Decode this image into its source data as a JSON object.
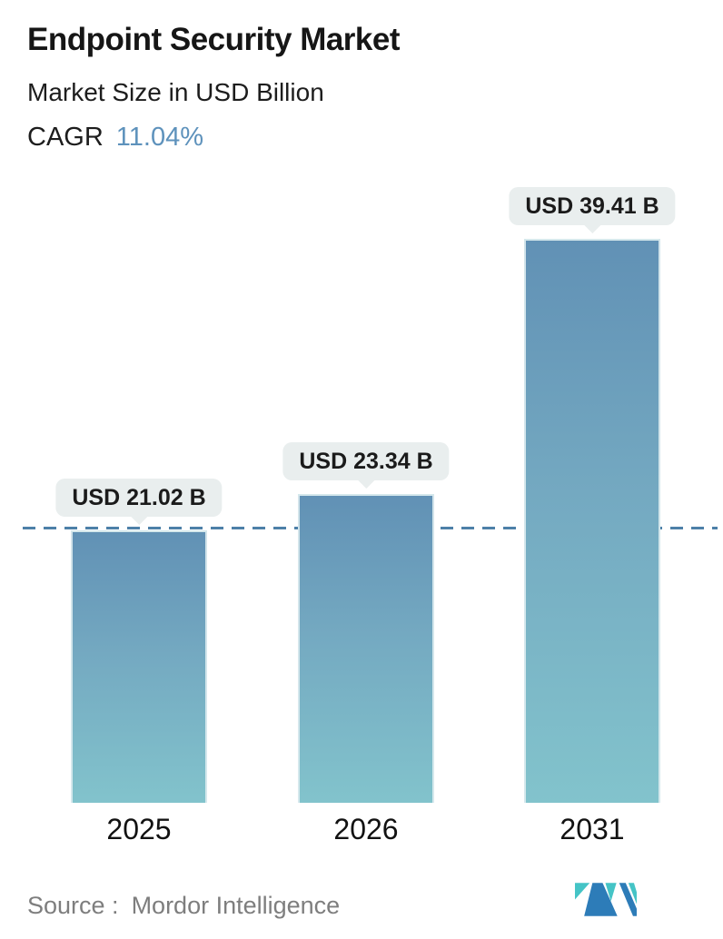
{
  "header": {
    "title": "Endpoint Security Market",
    "subtitle": "Market Size in USD Billion",
    "cagr_label": "CAGR",
    "cagr_value": "11.04%"
  },
  "chart_data": {
    "type": "bar",
    "title": "Endpoint Security Market",
    "subtitle": "Market Size in USD Billion",
    "unit": "USD Billion",
    "cagr": "11.04%",
    "categories": [
      "2025",
      "2026",
      "2031"
    ],
    "values": [
      21.02,
      23.34,
      39.41
    ],
    "value_labels": [
      "USD 21.02 B",
      "USD 23.34 B",
      "USD 39.41 B"
    ],
    "reference_line": {
      "style": "dashed",
      "at_value": 21.02,
      "color": "#4d80a8"
    },
    "grid": false,
    "legend": "none",
    "y_axis_visible": false
  },
  "footer": {
    "source_label": "Source :",
    "source_value": "Mordor Intelligence",
    "logo": "mordor-intelligence-logo"
  },
  "colors": {
    "accent_blue": "#5e92bc",
    "bar_gradient_top": "#6191b5",
    "bar_gradient_bottom": "#82c3cc",
    "bubble_bg": "#e9eeee",
    "dashed_line": "#4d80a8",
    "text_dark": "#161616",
    "source_gray": "#7e7e7e",
    "logo_teal": "#45c4c6",
    "logo_blue": "#2d7cb8"
  }
}
